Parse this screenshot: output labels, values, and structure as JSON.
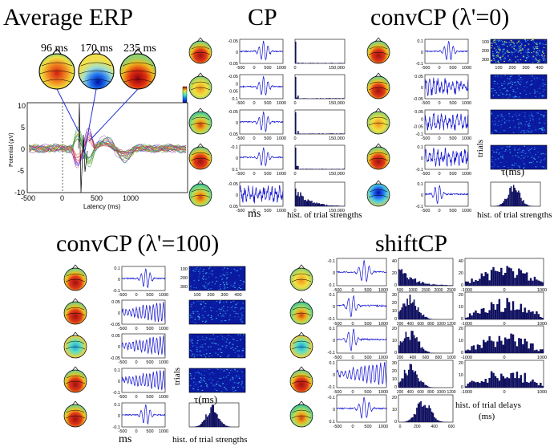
{
  "titles": {
    "erp": "Average ERP",
    "cp": "CP",
    "convcp0": "convCP (λ'=0)",
    "convcp100": "convCP (λ'=100)",
    "shiftcp": "shiftCP"
  },
  "erp_panel": {
    "topo_times": [
      "96 ms",
      "170 ms",
      "235 ms"
    ],
    "ylabel": "Potential (μV)",
    "xlabel": "Latency (ms)",
    "y_ticks": [
      "10",
      "5",
      "0",
      "-5",
      "-10"
    ],
    "x_ticks": [
      "-500",
      "0",
      "500",
      "1000"
    ]
  },
  "axis_labels": {
    "ms": "ms",
    "hist_trial_strengths": "hist. of trial strengths",
    "trials": "trials",
    "tau_ms": "τ(ms)",
    "hist_trial_delays": "hist. of trial delays",
    "ms_paren": "(ms)"
  },
  "cp": {
    "wave_y_ticks": [
      [
        "-0.05",
        "0",
        "0.05"
      ],
      [
        "-0.05",
        "0",
        "0.05",
        "0.1"
      ],
      [
        "-0.05",
        "0",
        "0.05"
      ],
      [
        "-0.1",
        "0",
        "0.1"
      ],
      [
        "-0.05",
        "0",
        "0.05"
      ]
    ],
    "hist_x_ticks": [
      [
        "0",
        "150,000"
      ],
      [
        "0",
        "150,000"
      ],
      [
        "0",
        "150,000"
      ],
      [
        "0",
        "150,000"
      ],
      [
        "0",
        "150,000"
      ]
    ]
  },
  "convcp0": {
    "wave_y_ticks": [
      [
        "0.1",
        "0",
        "-0.1"
      ],
      [
        "0.05",
        "0",
        "-0.05"
      ],
      [
        "0.05",
        "0",
        "-0.05",
        "-0.1"
      ],
      [
        "0.1",
        "0",
        "-0.1"
      ],
      [
        "0.1",
        "0",
        "-0.1"
      ]
    ],
    "img_y_ticks": [
      "100",
      "200",
      "300"
    ],
    "img_x_ticks": [
      "100",
      "200",
      "300",
      "400"
    ]
  },
  "convcp100": {
    "wave_y_ticks": [
      [
        "0.1",
        "0",
        "-0.1"
      ],
      [
        "0.05",
        "0",
        "-0.05"
      ],
      [
        "0.05",
        "0",
        "-0.05"
      ],
      [
        "0.1",
        "0",
        "-0.1"
      ],
      [
        "0.1",
        "0",
        "-0.1"
      ]
    ],
    "img_y_ticks": [
      "100",
      "200",
      "300"
    ],
    "img_x_ticks": [
      "100",
      "200",
      "300",
      "400"
    ]
  },
  "shiftcp": {
    "wave_y_ticks": [
      [
        "-0.1",
        "0",
        "0.1"
      ],
      [
        "0.1",
        "0",
        "-0.1"
      ],
      [
        "0.1",
        "0",
        "-0.1"
      ],
      [
        "0.1",
        "0",
        "-0.1"
      ],
      [
        "-0.1",
        "0",
        "0.1"
      ]
    ],
    "str_x_ticks": [
      [
        "500",
        "1000",
        "1500",
        "2000",
        "2500"
      ],
      [
        "200",
        "400",
        "600",
        "800",
        "1000",
        "1200"
      ],
      [
        "200",
        "400",
        "600",
        "800",
        "1000"
      ],
      [
        "200",
        "400",
        "600",
        "800",
        "1000",
        "1200"
      ],
      [
        "0",
        "200",
        "400",
        "600"
      ]
    ],
    "str_y_ticks": [
      [
        "40",
        "20",
        "0"
      ],
      [
        "30",
        "20",
        "10",
        "0"
      ],
      [
        "20",
        "10",
        "0"
      ],
      [
        "30",
        "20",
        "10",
        "0"
      ],
      [
        "20",
        "10",
        "0"
      ]
    ],
    "delay_y_ticks": [
      [
        "40",
        "20",
        "0"
      ],
      [
        "20",
        "10",
        "0"
      ],
      [
        "20",
        "10",
        "0"
      ],
      [
        "20",
        "10",
        "0"
      ]
    ],
    "delay_x_ticks": [
      "-1000",
      "0",
      "1000"
    ]
  },
  "wave_x_ticks": [
    "-500",
    "0",
    "500",
    "1000"
  ],
  "chart_data": [
    {
      "type": "line",
      "title": "Average ERP",
      "xlabel": "Latency (ms)",
      "ylabel": "Potential (μV)",
      "xlim": [
        -500,
        1500
      ],
      "ylim": [
        -10,
        10
      ],
      "annotations": [
        "96 ms",
        "170 ms",
        "235 ms"
      ]
    },
    {
      "type": "bar",
      "title": "hist. of trial strengths"
    },
    {
      "type": "bar",
      "title": "hist. of trial delays"
    }
  ]
}
